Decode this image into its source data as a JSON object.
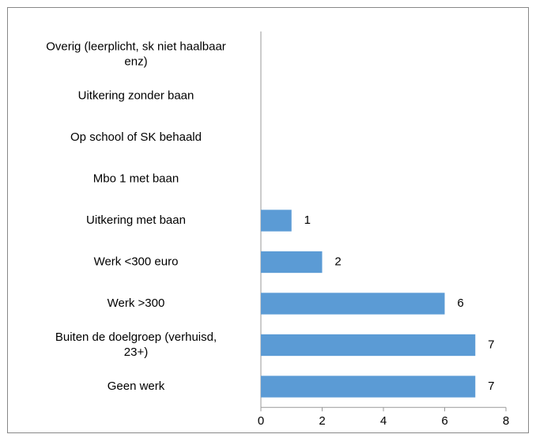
{
  "chart_data": {
    "type": "bar",
    "orientation": "horizontal",
    "categories": [
      "Overig (leerplicht, sk niet haalbaar\nenz)",
      "Uitkering zonder baan",
      "Op school of SK behaald",
      "Mbo 1 met baan",
      "Uitkering met baan",
      "Werk <300 euro",
      "Werk >300",
      "Buiten de doelgroep (verhuisd,\n23+)",
      "Geen werk"
    ],
    "values": [
      null,
      null,
      null,
      null,
      1,
      2,
      6,
      7,
      7
    ],
    "color": "#5b9bd5",
    "xlim": [
      0,
      8
    ],
    "xticks": [
      0,
      2,
      4,
      6,
      8
    ],
    "grid": false
  }
}
